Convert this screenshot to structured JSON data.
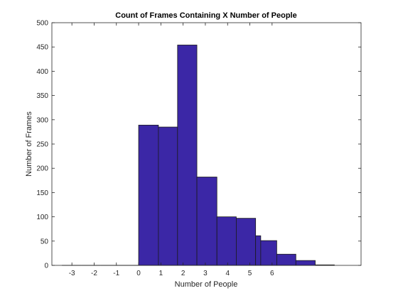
{
  "chart_data": {
    "type": "bar",
    "title": "Count of Frames Containing X Number of People",
    "xlabel": "Number of People",
    "ylabel": "Number of Frames",
    "xlim": [
      -3.9,
      10.0
    ],
    "ylim": [
      0,
      500
    ],
    "x_ticks": [
      -3,
      -2,
      -1,
      0,
      1,
      2,
      3,
      4,
      5,
      6
    ],
    "y_ticks": [
      0,
      50,
      100,
      150,
      200,
      250,
      300,
      350,
      400,
      450,
      500
    ],
    "bar_color": "#3b27a6",
    "bars": [
      {
        "x0": -3.45,
        "x1": -2.57,
        "value": 0
      },
      {
        "x0": -2.57,
        "x1": -1.7,
        "value": 0
      },
      {
        "x0": -1.7,
        "x1": -0.89,
        "value": 0
      },
      {
        "x0": -0.89,
        "x1": 0.0,
        "value": 0
      },
      {
        "x0": 0.0,
        "x1": 0.89,
        "value": 289
      },
      {
        "x0": 0.89,
        "x1": 1.75,
        "value": 285
      },
      {
        "x0": 1.75,
        "x1": 2.62,
        "value": 454
      },
      {
        "x0": 2.62,
        "x1": 3.52,
        "value": 182
      },
      {
        "x0": 3.52,
        "x1": 4.39,
        "value": 100
      },
      {
        "x0": 4.39,
        "x1": 5.26,
        "value": 97
      },
      {
        "x0": 5.26,
        "x1": 5.49,
        "value": 61
      },
      {
        "x0": 5.49,
        "x1": 6.21,
        "value": 51
      },
      {
        "x0": 6.21,
        "x1": 7.07,
        "value": 23
      },
      {
        "x0": 7.07,
        "x1": 7.94,
        "value": 10
      },
      {
        "x0": 7.94,
        "x1": 8.8,
        "value": 1
      }
    ],
    "grid": false
  }
}
